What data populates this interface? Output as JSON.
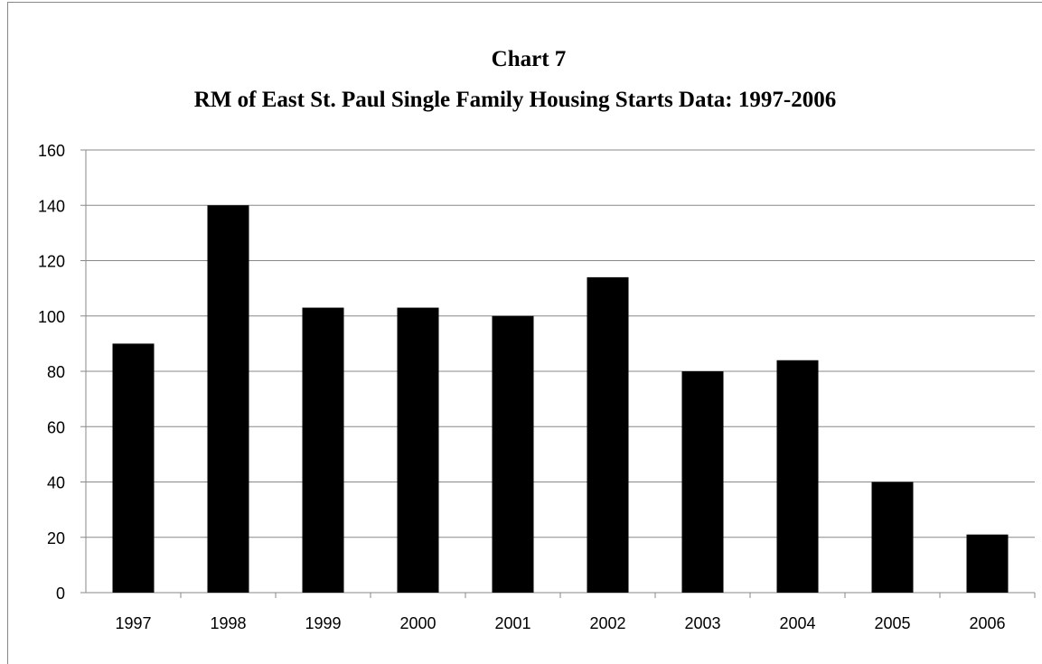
{
  "chart_data": {
    "type": "bar",
    "title": "Chart 7",
    "subtitle": "RM of East St. Paul Single Family Housing Starts Data: 1997-2006",
    "categories": [
      "1997",
      "1998",
      "1999",
      "2000",
      "2001",
      "2002",
      "2003",
      "2004",
      "2005",
      "2006"
    ],
    "values": [
      90,
      140,
      103,
      103,
      100,
      114,
      80,
      84,
      40,
      21
    ],
    "color": "#000000",
    "ylim": [
      0,
      160
    ],
    "yticks": [
      0,
      20,
      40,
      60,
      80,
      100,
      120,
      140,
      160
    ],
    "grid": true
  }
}
